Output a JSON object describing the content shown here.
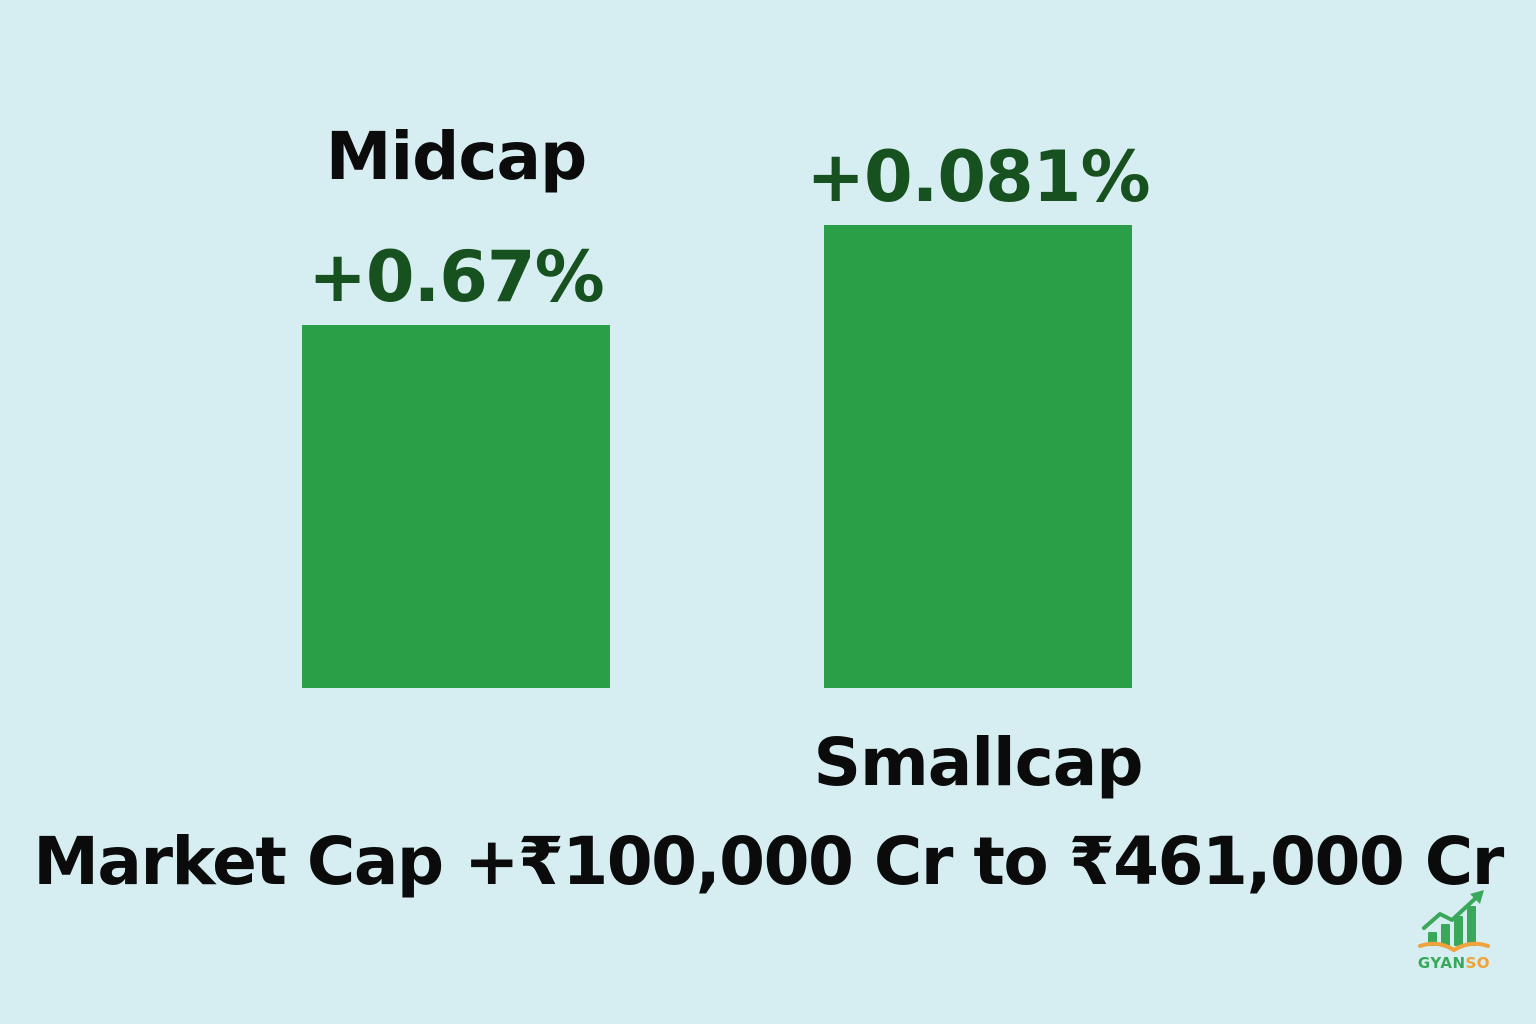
{
  "colors": {
    "background": "#d6eef1",
    "bar": "#2a9f48",
    "value_text": "#17511f",
    "category_text": "#0b0b0b",
    "logo_green": "#3aa85a",
    "logo_orange": "#f0a23c"
  },
  "chart_data": {
    "type": "bar",
    "categories": [
      "Midcap",
      "Smallcap"
    ],
    "values": [
      0.67,
      0.081
    ],
    "value_labels": [
      "+0.67%",
      "+0.081%"
    ],
    "title": "",
    "xlabel": "Market Cap +₹100,000 Cr to ₹461,000 Cr",
    "ylabel": "",
    "grid": false,
    "legend": "none"
  },
  "brand": {
    "logo_text_part1": "GYAN",
    "logo_text_part2": "SO",
    "logo_icon": "growth-chart-book-icon"
  }
}
